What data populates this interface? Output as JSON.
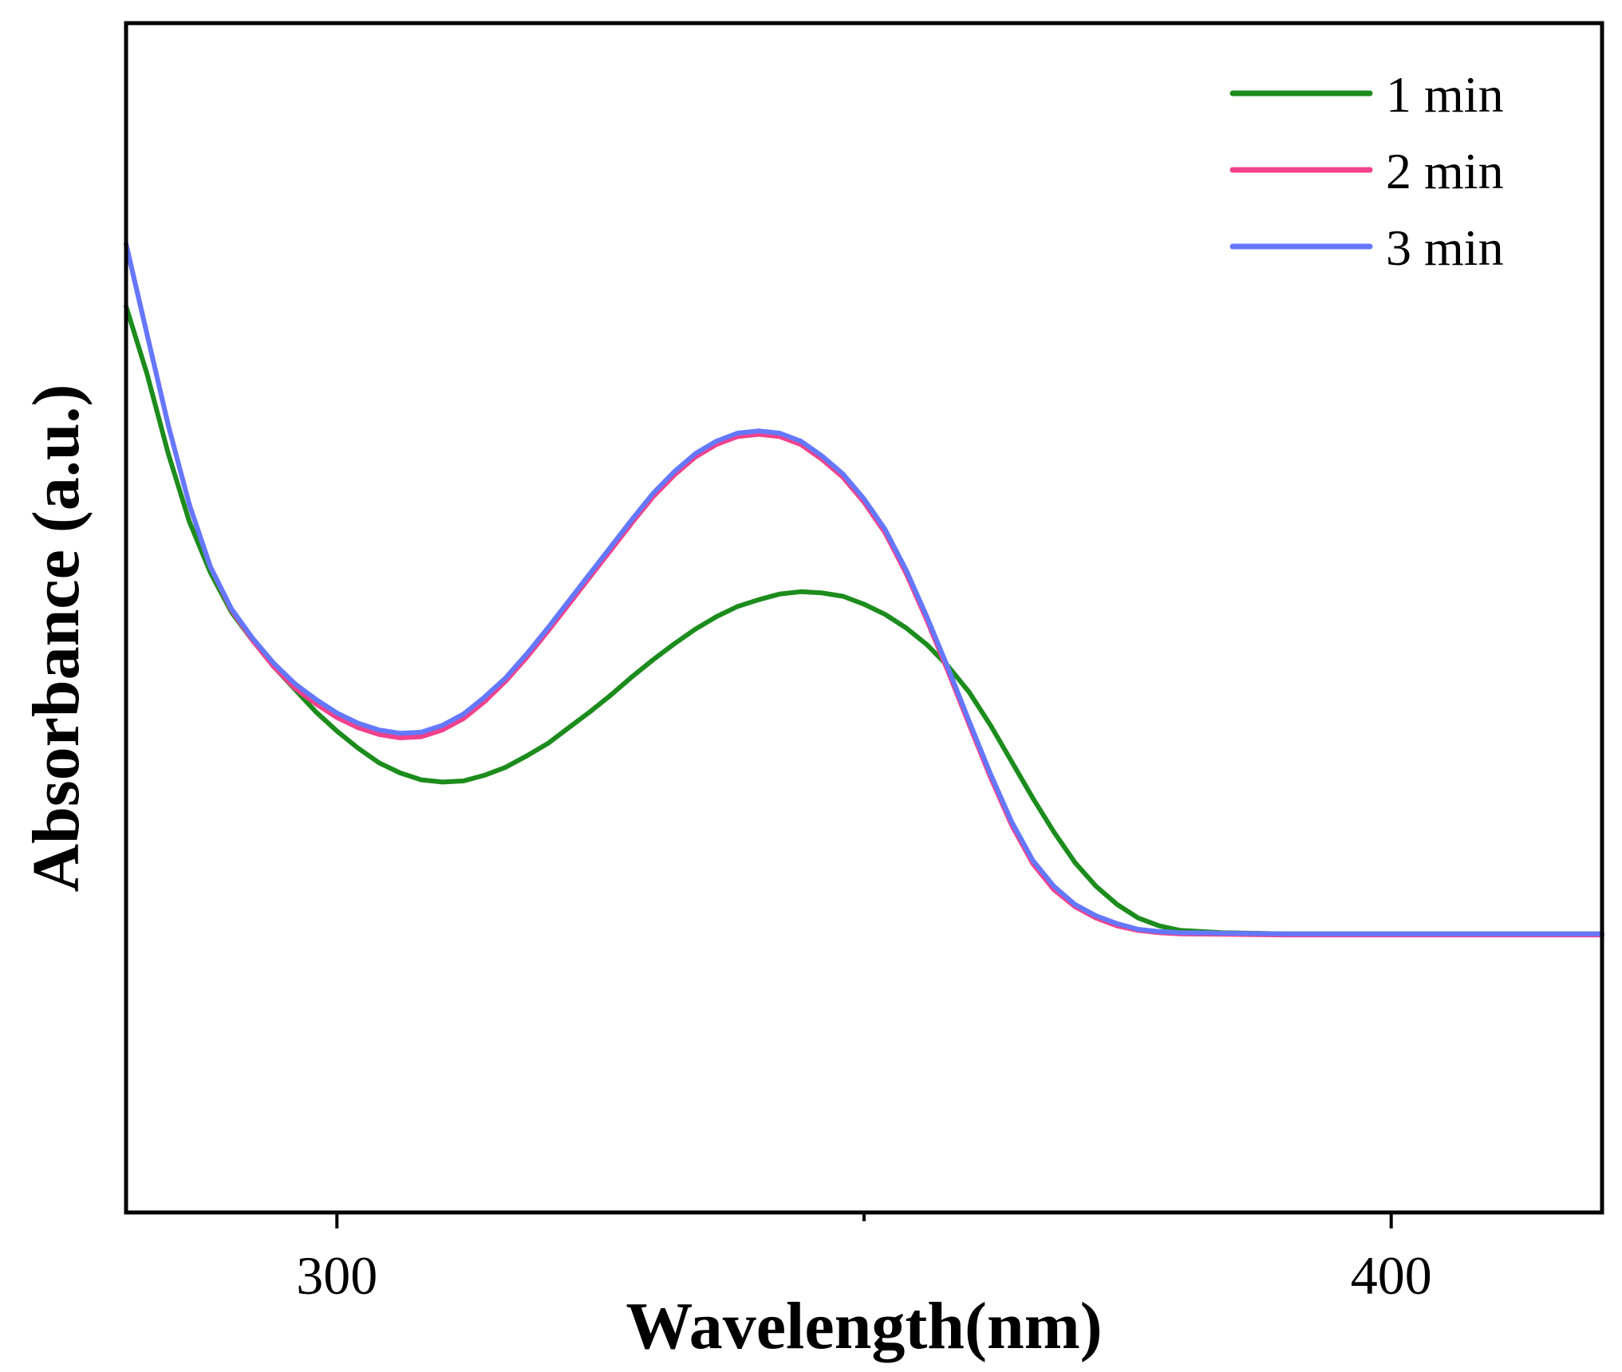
{
  "chart_data": {
    "type": "line",
    "title": "",
    "xlabel": "Wavelength(nm)",
    "ylabel": "Absorbance (a.u.)",
    "xlim": [
      280,
      420
    ],
    "ylim": [
      0,
      1.05
    ],
    "x_ticks": [
      {
        "value": 300,
        "label": "300"
      },
      {
        "value": 400,
        "label": "400"
      }
    ],
    "x_minor_ticks": [
      350
    ],
    "grid": false,
    "legend_position": "top-right",
    "series": [
      {
        "name": "1 min",
        "color": "#1c8c1c",
        "points": [
          [
            280,
            0.8
          ],
          [
            282,
            0.74
          ],
          [
            284,
            0.67
          ],
          [
            286,
            0.61
          ],
          [
            288,
            0.565
          ],
          [
            290,
            0.53
          ],
          [
            292,
            0.505
          ],
          [
            294,
            0.482
          ],
          [
            296,
            0.462
          ],
          [
            298,
            0.442
          ],
          [
            300,
            0.425
          ],
          [
            302,
            0.41
          ],
          [
            304,
            0.397
          ],
          [
            306,
            0.388
          ],
          [
            308,
            0.382
          ],
          [
            310,
            0.38
          ],
          [
            312,
            0.381
          ],
          [
            314,
            0.386
          ],
          [
            316,
            0.393
          ],
          [
            318,
            0.403
          ],
          [
            320,
            0.414
          ],
          [
            322,
            0.428
          ],
          [
            324,
            0.442
          ],
          [
            326,
            0.457
          ],
          [
            328,
            0.473
          ],
          [
            330,
            0.488
          ],
          [
            332,
            0.502
          ],
          [
            334,
            0.515
          ],
          [
            336,
            0.526
          ],
          [
            338,
            0.535
          ],
          [
            340,
            0.541
          ],
          [
            342,
            0.546
          ],
          [
            344,
            0.548
          ],
          [
            346,
            0.547
          ],
          [
            348,
            0.544
          ],
          [
            350,
            0.537
          ],
          [
            352,
            0.528
          ],
          [
            354,
            0.516
          ],
          [
            356,
            0.501
          ],
          [
            358,
            0.482
          ],
          [
            360,
            0.459
          ],
          [
            362,
            0.43
          ],
          [
            364,
            0.398
          ],
          [
            366,
            0.366
          ],
          [
            368,
            0.336
          ],
          [
            370,
            0.309
          ],
          [
            372,
            0.288
          ],
          [
            374,
            0.272
          ],
          [
            376,
            0.26
          ],
          [
            378,
            0.253
          ],
          [
            380,
            0.249
          ],
          [
            384,
            0.247
          ],
          [
            390,
            0.246
          ],
          [
            400,
            0.246
          ],
          [
            410,
            0.246
          ],
          [
            420,
            0.246
          ]
        ]
      },
      {
        "name": "2 min",
        "color": "#f0418c",
        "points": [
          [
            280,
            0.855
          ],
          [
            282,
            0.775
          ],
          [
            284,
            0.695
          ],
          [
            286,
            0.625
          ],
          [
            288,
            0.57
          ],
          [
            290,
            0.532
          ],
          [
            292,
            0.505
          ],
          [
            294,
            0.482
          ],
          [
            296,
            0.463
          ],
          [
            298,
            0.449
          ],
          [
            300,
            0.437
          ],
          [
            302,
            0.428
          ],
          [
            304,
            0.422
          ],
          [
            306,
            0.419
          ],
          [
            308,
            0.42
          ],
          [
            310,
            0.426
          ],
          [
            312,
            0.436
          ],
          [
            314,
            0.451
          ],
          [
            316,
            0.469
          ],
          [
            318,
            0.49
          ],
          [
            320,
            0.513
          ],
          [
            322,
            0.537
          ],
          [
            324,
            0.561
          ],
          [
            326,
            0.585
          ],
          [
            328,
            0.609
          ],
          [
            330,
            0.632
          ],
          [
            332,
            0.651
          ],
          [
            334,
            0.667
          ],
          [
            336,
            0.678
          ],
          [
            338,
            0.685
          ],
          [
            340,
            0.687
          ],
          [
            342,
            0.685
          ],
          [
            344,
            0.678
          ],
          [
            346,
            0.665
          ],
          [
            348,
            0.649
          ],
          [
            350,
            0.627
          ],
          [
            352,
            0.6
          ],
          [
            354,
            0.564
          ],
          [
            356,
            0.522
          ],
          [
            358,
            0.477
          ],
          [
            360,
            0.43
          ],
          [
            362,
            0.384
          ],
          [
            364,
            0.342
          ],
          [
            366,
            0.308
          ],
          [
            368,
            0.285
          ],
          [
            370,
            0.27
          ],
          [
            372,
            0.26
          ],
          [
            374,
            0.253
          ],
          [
            376,
            0.249
          ],
          [
            378,
            0.247
          ],
          [
            380,
            0.246
          ],
          [
            390,
            0.245
          ],
          [
            400,
            0.245
          ],
          [
            410,
            0.245
          ],
          [
            420,
            0.245
          ]
        ]
      },
      {
        "name": "3 min",
        "color": "#6478ff",
        "points": [
          [
            280,
            0.855
          ],
          [
            282,
            0.775
          ],
          [
            284,
            0.695
          ],
          [
            286,
            0.625
          ],
          [
            288,
            0.57
          ],
          [
            290,
            0.533
          ],
          [
            292,
            0.507
          ],
          [
            294,
            0.485
          ],
          [
            296,
            0.467
          ],
          [
            298,
            0.453
          ],
          [
            300,
            0.441
          ],
          [
            302,
            0.432
          ],
          [
            304,
            0.426
          ],
          [
            306,
            0.423
          ],
          [
            308,
            0.424
          ],
          [
            310,
            0.43
          ],
          [
            312,
            0.44
          ],
          [
            314,
            0.455
          ],
          [
            316,
            0.472
          ],
          [
            318,
            0.493
          ],
          [
            320,
            0.516
          ],
          [
            322,
            0.54
          ],
          [
            324,
            0.564
          ],
          [
            326,
            0.588
          ],
          [
            328,
            0.612
          ],
          [
            330,
            0.635
          ],
          [
            332,
            0.654
          ],
          [
            334,
            0.67
          ],
          [
            336,
            0.681
          ],
          [
            338,
            0.688
          ],
          [
            340,
            0.69
          ],
          [
            342,
            0.688
          ],
          [
            344,
            0.681
          ],
          [
            346,
            0.668
          ],
          [
            348,
            0.652
          ],
          [
            350,
            0.63
          ],
          [
            352,
            0.603
          ],
          [
            354,
            0.567
          ],
          [
            356,
            0.525
          ],
          [
            358,
            0.48
          ],
          [
            360,
            0.433
          ],
          [
            362,
            0.387
          ],
          [
            364,
            0.345
          ],
          [
            366,
            0.311
          ],
          [
            368,
            0.288
          ],
          [
            370,
            0.272
          ],
          [
            372,
            0.262
          ],
          [
            374,
            0.255
          ],
          [
            376,
            0.25
          ],
          [
            378,
            0.248
          ],
          [
            380,
            0.247
          ],
          [
            390,
            0.246
          ],
          [
            400,
            0.246
          ],
          [
            410,
            0.246
          ],
          [
            420,
            0.246
          ]
        ]
      }
    ]
  }
}
